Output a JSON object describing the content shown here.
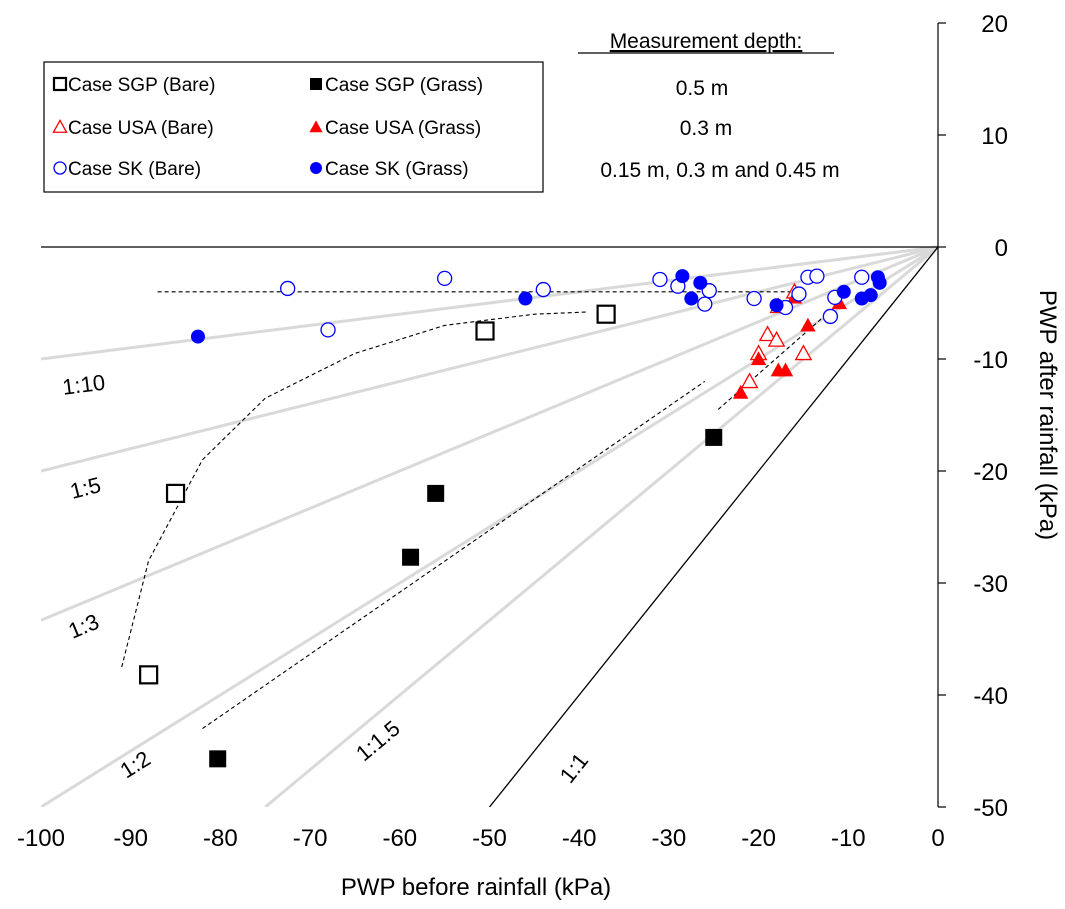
{
  "chart_data": {
    "type": "scatter",
    "xlabel": "PWP before rainfall (kPa)",
    "ylabel": "PWP after rainfall (kPa)",
    "xlim": [
      -100,
      0
    ],
    "ylim": [
      -50,
      20
    ],
    "x_ticks": [
      "-100",
      "-90",
      "-80",
      "-70",
      "-60",
      "-50",
      "-40",
      "-30",
      "-20",
      "-10",
      "0"
    ],
    "y_ticks": [
      "20",
      "10",
      "0",
      "-10",
      "-20",
      "-30",
      "-40",
      "-50"
    ],
    "ratio_lines": [
      {
        "label": "1:10",
        "slope": 0.1
      },
      {
        "label": "1:5",
        "slope": 0.2
      },
      {
        "label": "1:3",
        "slope": 0.3333
      },
      {
        "label": "1:2",
        "slope": 0.5
      },
      {
        "label": "1:1.5",
        "slope": 0.6667
      },
      {
        "label": "1:1",
        "slope": 1.0
      }
    ],
    "legend": {
      "header": "Measurement depth:",
      "rows": [
        {
          "bare": "Case SGP (Bare)",
          "grass": "Case SGP (Grass)",
          "depth": "0.5 m"
        },
        {
          "bare": "Case USA (Bare)",
          "grass": "Case USA (Grass)",
          "depth": "0.3 m"
        },
        {
          "bare": "Case SK (Bare)",
          "grass": "Case SK (Grass)",
          "depth": "0.15 m, 0.3 m and 0.45 m"
        }
      ]
    },
    "colors": {
      "SGP": "#000000",
      "USA": "#ff0000",
      "SK": "#0000ff",
      "guide": "#d9d9d9"
    },
    "series": [
      {
        "name": "Case SGP (Bare)",
        "marker": "square-open",
        "color": "#000000",
        "points": [
          [
            -88,
            -38.2
          ],
          [
            -85,
            -22
          ],
          [
            -50.5,
            -7.5
          ],
          [
            -37,
            -6
          ]
        ]
      },
      {
        "name": "Case SGP (Grass)",
        "marker": "square",
        "color": "#000000",
        "points": [
          [
            -80.3,
            -45.7
          ],
          [
            -58.8,
            -27.7
          ],
          [
            -56,
            -22
          ],
          [
            -25,
            -17
          ]
        ]
      },
      {
        "name": "Case USA (Bare)",
        "marker": "triangle-open",
        "color": "#ff0000",
        "points": [
          [
            -21,
            -12
          ],
          [
            -20,
            -9.5
          ],
          [
            -19,
            -7.8
          ],
          [
            -18,
            -8.3
          ],
          [
            -17.8,
            -5.3
          ],
          [
            -16,
            -4
          ],
          [
            -15,
            -9.5
          ]
        ]
      },
      {
        "name": "Case USA (Grass)",
        "marker": "triangle",
        "color": "#ff0000",
        "points": [
          [
            -22,
            -13
          ],
          [
            -20,
            -10
          ],
          [
            -17.8,
            -11
          ],
          [
            -17,
            -11
          ],
          [
            -16,
            -4.5
          ],
          [
            -14.5,
            -7
          ],
          [
            -11,
            -5
          ]
        ]
      },
      {
        "name": "Case SK (Bare)",
        "marker": "circle-open",
        "color": "#0000ff",
        "points": [
          [
            -72.5,
            -3.7
          ],
          [
            -68,
            -7.4
          ],
          [
            -55,
            -2.8
          ],
          [
            -44,
            -3.8
          ],
          [
            -31,
            -2.9
          ],
          [
            -29,
            -3.5
          ],
          [
            -26,
            -5.1
          ],
          [
            -25.5,
            -3.9
          ],
          [
            -20.5,
            -4.6
          ],
          [
            -17,
            -5.4
          ],
          [
            -15.5,
            -4.2
          ],
          [
            -14.5,
            -2.7
          ],
          [
            -13.5,
            -2.6
          ],
          [
            -12,
            -6.2
          ],
          [
            -11.5,
            -4.5
          ],
          [
            -8.5,
            -2.7
          ]
        ]
      },
      {
        "name": "Case SK (Grass)",
        "marker": "circle",
        "color": "#0000ff",
        "points": [
          [
            -82.5,
            -8
          ],
          [
            -46,
            -4.6
          ],
          [
            -28.5,
            -2.6
          ],
          [
            -27.5,
            -4.6
          ],
          [
            -26.5,
            -3.2
          ],
          [
            -18,
            -5.2
          ],
          [
            -10.5,
            -4
          ],
          [
            -8.5,
            -4.6
          ],
          [
            -7.5,
            -4.3
          ],
          [
            -6.7,
            -2.7
          ],
          [
            -6.5,
            -3.2
          ]
        ]
      }
    ],
    "trend_lines": [
      {
        "points": [
          [
            -87,
            -4
          ],
          [
            -15,
            -4
          ]
        ]
      },
      {
        "points": [
          [
            -91,
            -37.5
          ],
          [
            -88,
            -28
          ],
          [
            -82,
            -19
          ],
          [
            -75,
            -13.5
          ],
          [
            -65,
            -9.5
          ],
          [
            -55,
            -7
          ],
          [
            -45,
            -6
          ],
          [
            -39,
            -5.8
          ]
        ]
      },
      {
        "points": [
          [
            -82,
            -43
          ],
          [
            -26,
            -12
          ]
        ]
      },
      {
        "points": [
          [
            -24.5,
            -14.5
          ],
          [
            -11,
            -5
          ]
        ]
      }
    ]
  }
}
